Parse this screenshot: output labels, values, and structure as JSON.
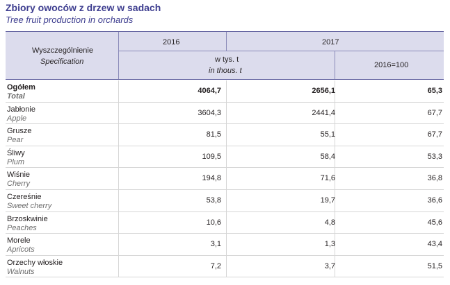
{
  "title": "Zbiory owoców z drzew w sadach",
  "subtitle": "Tree fruit production in orchards",
  "header": {
    "label_pl": "Wyszczególnienie",
    "label_en": "Specification",
    "year1": "2016",
    "year2": "2017",
    "unit_pl": "w tys. t",
    "unit_en": "in thous. t",
    "index": "2016=100"
  },
  "rows": [
    {
      "pl": "Ogółem",
      "en": "Total",
      "v2016": "4064,7",
      "v2017": "2656,1",
      "idx": "65,3"
    },
    {
      "pl": "Jabłonie",
      "en": "Apple",
      "v2016": "3604,3",
      "v2017": "2441,4",
      "idx": "67,7"
    },
    {
      "pl": "Grusze",
      "en": "Pear",
      "v2016": "81,5",
      "v2017": "55,1",
      "idx": "67,7"
    },
    {
      "pl": "Śliwy",
      "en": "Plum",
      "v2016": "109,5",
      "v2017": "58,4",
      "idx": "53,3"
    },
    {
      "pl": "Wiśnie",
      "en": "Cherry",
      "v2016": "194,8",
      "v2017": "71,6",
      "idx": "36,8"
    },
    {
      "pl": "Czereśnie",
      "en": "Sweet cherry",
      "v2016": "53,8",
      "v2017": "19,7",
      "idx": "36,6"
    },
    {
      "pl": "Brzoskwinie",
      "en": "Peaches",
      "v2016": "10,6",
      "v2017": "4,8",
      "idx": "45,6"
    },
    {
      "pl": "Morele",
      "en": "Apricots",
      "v2016": "3,1",
      "v2017": "1,3",
      "idx": "43,4"
    },
    {
      "pl": "Orzechy włoskie",
      "en": "Walnuts",
      "v2016": "7,2",
      "v2017": "3,7",
      "idx": "51,5"
    }
  ]
}
